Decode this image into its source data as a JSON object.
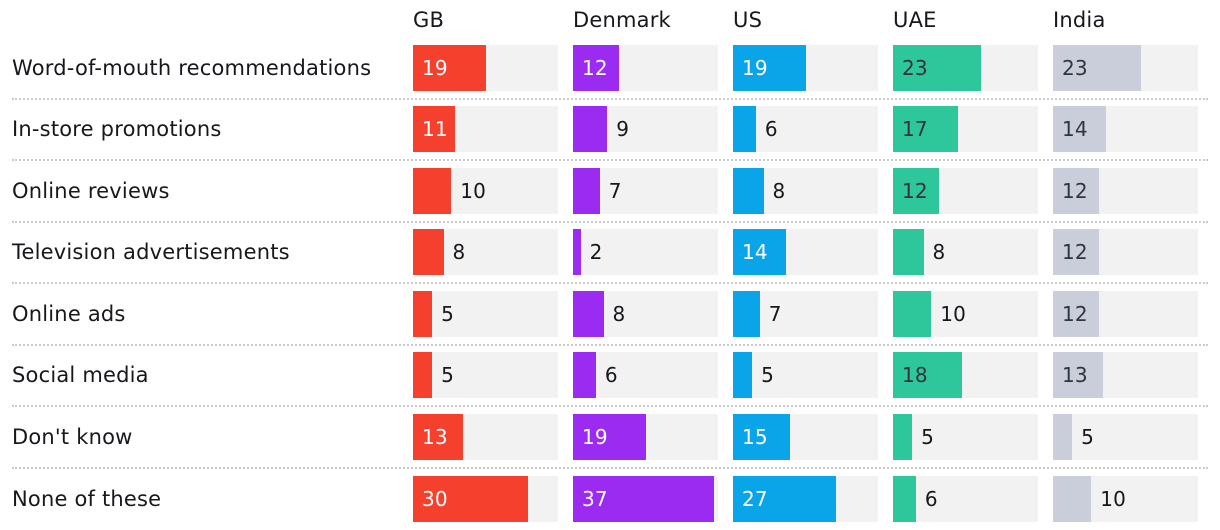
{
  "chart_data": {
    "type": "bar",
    "orientation": "horizontal",
    "title": "",
    "categories": [
      "Word-of-mouth recommendations",
      "In-store promotions",
      "Online reviews",
      "Television advertisements",
      "Online ads",
      "Social media",
      "Don't know",
      "None of these"
    ],
    "series": [
      {
        "name": "GB",
        "color": "#f5402d",
        "label_color_inside": "#ffffff",
        "values": [
          19,
          11,
          10,
          8,
          5,
          5,
          13,
          30
        ]
      },
      {
        "name": "Denmark",
        "color": "#9c2bf2",
        "label_color_inside": "#ffffff",
        "values": [
          12,
          9,
          7,
          2,
          8,
          6,
          19,
          37
        ]
      },
      {
        "name": "US",
        "color": "#0aa4e8",
        "label_color_inside": "#ffffff",
        "values": [
          19,
          6,
          8,
          14,
          7,
          5,
          15,
          27
        ]
      },
      {
        "name": "UAE",
        "color": "#2ec69b",
        "label_color_inside": "#33333c",
        "values": [
          23,
          17,
          12,
          8,
          10,
          18,
          5,
          6
        ]
      },
      {
        "name": "India",
        "color": "#caceda",
        "label_color_inside": "#33333c",
        "values": [
          23,
          14,
          12,
          12,
          12,
          13,
          5,
          10
        ]
      }
    ],
    "xlim": [
      0,
      38
    ],
    "value_labels": "always shown; inside bar when value >= 11, outside on track when <= 10",
    "value_label_inside_min": 11,
    "track_color": "#f2f2f3",
    "separator_style": "dotted horizontal lines between rows",
    "legend": "series names shown as column headers above each bar column",
    "grid": false
  }
}
